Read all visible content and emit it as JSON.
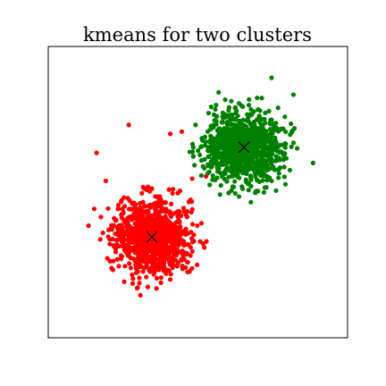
{
  "chart_data": {
    "type": "scatter",
    "title": "kmeans for two clusters",
    "xlabel": "",
    "ylabel": "",
    "xlim": [
      -6.5,
      6.5
    ],
    "ylim": [
      -6.5,
      6.5
    ],
    "grid": false,
    "legend": "none",
    "axis_ticks": false,
    "series": [
      {
        "cluster": 1,
        "color": "#ff0000",
        "point_count": 1000,
        "mean": [
          -2.0,
          -2.0
        ],
        "std": [
          0.8,
          0.8
        ],
        "outliers": [
          [
            -4.4,
            1.75
          ],
          [
            -3.0,
            3.0
          ],
          [
            -4.0,
            0.5
          ],
          [
            -3.5,
            -3.0
          ],
          [
            -4.5,
            -0.75
          ],
          [
            -1.2,
            2.6
          ],
          [
            -4.75,
            -1.5
          ],
          [
            -0.25,
            0.6
          ],
          [
            -3.2,
            -4.0
          ],
          [
            -2.5,
            -4.6
          ],
          [
            -1.8,
            -4.3
          ],
          [
            -1.2,
            -3.9
          ],
          [
            0.35,
            0.7
          ],
          [
            -0.7,
            2.7
          ],
          [
            -3.7,
            -2.1
          ]
        ]
      },
      {
        "cluster": 2,
        "color": "#008000",
        "point_count": 1000,
        "mean": [
          2.0,
          2.0
        ],
        "std": [
          0.8,
          0.8
        ],
        "outliers": [
          [
            -0.2,
            2.0
          ],
          [
            -0.15,
            1.2
          ],
          [
            5.0,
            1.3
          ],
          [
            3.2,
            5.1
          ],
          [
            -0.2,
            1.6
          ],
          [
            3.4,
            1.4
          ],
          [
            3.2,
            0.5
          ],
          [
            4.15,
            2.2
          ],
          [
            2.3,
            -0.45
          ],
          [
            4.15,
            4.35
          ],
          [
            0.9,
            4.45
          ],
          [
            3.8,
            0.35
          ],
          [
            -0.1,
            3.0
          ],
          [
            0.45,
            2.0
          ],
          [
            1.0,
            0.3
          ],
          [
            2.1,
            0.45
          ]
        ]
      }
    ],
    "centroids": [
      {
        "cluster": 1,
        "x": -2.0,
        "y": -2.0,
        "marker": "x",
        "color": "#000000"
      },
      {
        "cluster": 2,
        "x": 2.0,
        "y": 2.0,
        "marker": "x",
        "color": "#000000"
      }
    ]
  }
}
